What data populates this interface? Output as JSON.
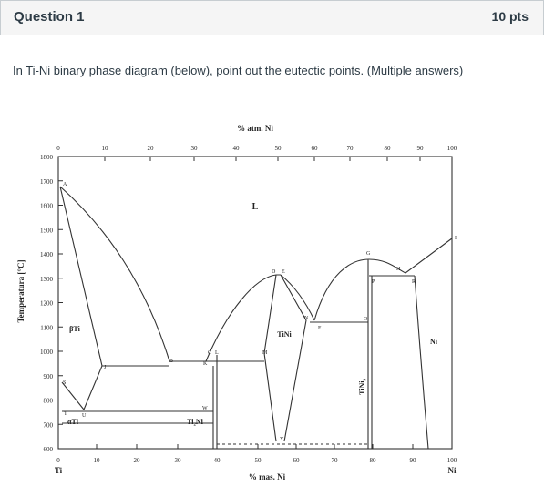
{
  "header": {
    "title": "Question 1",
    "points": "10 pts"
  },
  "question": "In Ti-Ni binary phase diagram (below), point out the eutectic points. (Multiple answers)",
  "figure": {
    "top_axis_label": "% atm. Ni",
    "bottom_axis_label": "% mas. Ni",
    "y_axis_label": "Temperatura [°C]",
    "top_ticks": [
      0,
      10,
      20,
      30,
      40,
      50,
      60,
      70,
      80,
      90,
      100
    ],
    "bottom_ticks": [
      0,
      10,
      20,
      30,
      40,
      50,
      60,
      70,
      80,
      90,
      100
    ],
    "y_ticks": [
      1800,
      1700,
      1600,
      1500,
      1400,
      1300,
      1200,
      1100,
      1000,
      900,
      800,
      700,
      600
    ],
    "left_end_label": "Ti",
    "right_end_label": "Ni",
    "phase_labels": [
      "L",
      "βTi",
      "TiNi",
      "Ni",
      "Ti₂Ni",
      "αTi",
      "TiNi₃"
    ],
    "point_labels": [
      "A",
      "J",
      "B",
      "K",
      "C",
      "L",
      "D",
      "E",
      "M",
      "N",
      "F",
      "O",
      "G",
      "P",
      "H",
      "R",
      "I",
      "S",
      "T",
      "U",
      "W",
      "Y"
    ]
  }
}
